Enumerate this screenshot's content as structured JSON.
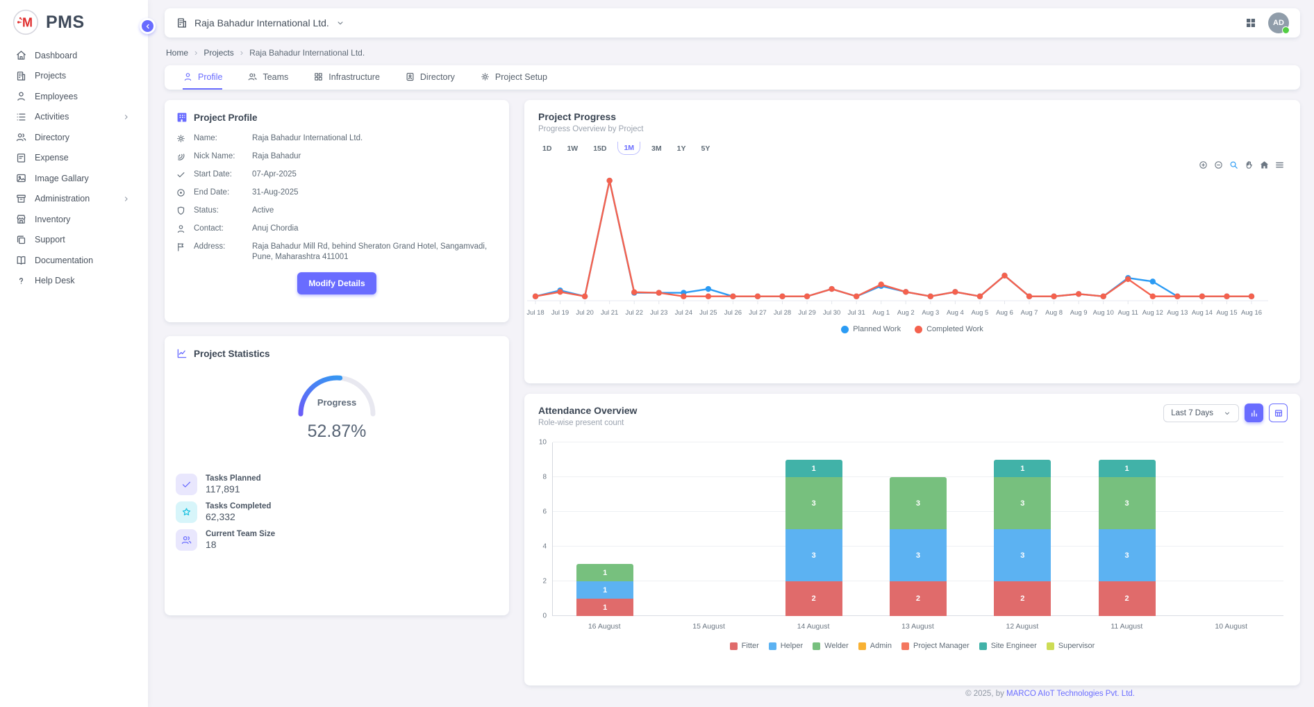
{
  "app": {
    "name": "PMS",
    "logo_letter": "M",
    "logo_color": "#e02b2b"
  },
  "sidebar": {
    "items": [
      {
        "label": "Dashboard",
        "icon": "home",
        "has_submenu": false
      },
      {
        "label": "Projects",
        "icon": "building",
        "has_submenu": false
      },
      {
        "label": "Employees",
        "icon": "user",
        "has_submenu": false
      },
      {
        "label": "Activities",
        "icon": "list",
        "has_submenu": true
      },
      {
        "label": "Directory",
        "icon": "users",
        "has_submenu": false
      },
      {
        "label": "Expense",
        "icon": "receipt",
        "has_submenu": false
      },
      {
        "label": "Image Gallary",
        "icon": "image",
        "has_submenu": false
      },
      {
        "label": "Administration",
        "icon": "archive",
        "has_submenu": true
      },
      {
        "label": "Inventory",
        "icon": "store",
        "has_submenu": false
      },
      {
        "label": "Support",
        "icon": "copies",
        "has_submenu": false
      },
      {
        "label": "Documentation",
        "icon": "book",
        "has_submenu": false
      },
      {
        "label": "Help Desk",
        "icon": "help",
        "has_submenu": false
      }
    ]
  },
  "header": {
    "project_selector": "Raja Bahadur International Ltd.",
    "avatar_initials": "AD"
  },
  "breadcrumb": {
    "separator": "›",
    "items": [
      "Home",
      "Projects",
      "Raja Bahadur International Ltd."
    ]
  },
  "tabs": [
    {
      "label": "Profile",
      "icon": "user",
      "active": true
    },
    {
      "label": "Teams",
      "icon": "users",
      "active": false
    },
    {
      "label": "Infrastructure",
      "icon": "grid4",
      "active": false
    },
    {
      "label": "Directory",
      "icon": "contact",
      "active": false
    },
    {
      "label": "Project Setup",
      "icon": "gear",
      "active": false
    }
  ],
  "profile_card": {
    "title": "Project Profile",
    "fields": [
      {
        "label": "Name:",
        "value": "Raja Bahadur International Ltd.",
        "icon": "gear"
      },
      {
        "label": "Nick Name:",
        "value": "Raja Bahadur",
        "icon": "sig"
      },
      {
        "label": "Start Date:",
        "value": "07-Apr-2025",
        "icon": "check"
      },
      {
        "label": "End Date:",
        "value": "31-Aug-2025",
        "icon": "cdot"
      },
      {
        "label": "Status:",
        "value": "Active",
        "icon": "shield"
      },
      {
        "label": "Contact:",
        "value": "Anuj Chordia",
        "icon": "user"
      },
      {
        "label": "Address:",
        "value": "Raja Bahadur Mill Rd, behind Sheraton Grand Hotel, Sangamvadi, Pune, Maharashtra 411001",
        "icon": "flag"
      }
    ],
    "button_label": "Modify Details"
  },
  "stats_card": {
    "title": "Project Statistics",
    "gauge_label": "Progress",
    "gauge_value": "52.87%",
    "gauge_percent": 52.87,
    "gauge_colors": [
      "#6a5df8",
      "#28a7f0"
    ],
    "stats": [
      {
        "label": "Tasks Planned",
        "value": "117,891",
        "icon": "check",
        "style": "purple"
      },
      {
        "label": "Tasks Completed",
        "value": "62,332",
        "icon": "star",
        "style": "cyan"
      },
      {
        "label": "Current Team Size",
        "value": "18",
        "icon": "users",
        "style": "purple"
      }
    ]
  },
  "progress_card": {
    "title": "Project Progress",
    "subtitle": "Progress Overview by Project",
    "ranges": [
      "1D",
      "1W",
      "15D",
      "1M",
      "3M",
      "1Y",
      "5Y"
    ],
    "active_range": "1M",
    "toolbar": [
      {
        "name": "zoom-in",
        "sym": "zin",
        "active": false
      },
      {
        "name": "zoom-out",
        "sym": "zout",
        "active": false
      },
      {
        "name": "selection-zoom",
        "sym": "mag",
        "active": true
      },
      {
        "name": "pan",
        "sym": "hand",
        "active": false
      },
      {
        "name": "reset-zoom-home",
        "sym": "homef",
        "active": false
      },
      {
        "name": "menu",
        "sym": "menu",
        "active": false
      }
    ]
  },
  "attendance_card": {
    "title": "Attendance Overview",
    "subtitle": "Role-wise present count",
    "range_select": "Last 7 Days",
    "view_toggles": [
      {
        "name": "chart-view",
        "icon": "barchart",
        "active": true
      },
      {
        "name": "table-view",
        "icon": "table",
        "active": false
      }
    ]
  },
  "footer": {
    "copyright": "© 2025, by ",
    "company": "MARCO AIoT Technologies Pvt. Ltd."
  },
  "chart_data": [
    {
      "type": "line",
      "title": "Project Progress",
      "x": [
        "Jul 18",
        "Jul 19",
        "Jul 20",
        "Jul 21",
        "Jul 22",
        "Jul 23",
        "Jul 24",
        "Jul 25",
        "Jul 26",
        "Jul 27",
        "Jul 28",
        "Jul 29",
        "Jul 30",
        "Jul 31",
        "Aug 1",
        "Aug 2",
        "Aug 3",
        "Aug 4",
        "Aug 5",
        "Aug 6",
        "Aug 7",
        "Aug 8",
        "Aug 9",
        "Aug 10",
        "Aug 11",
        "Aug 12",
        "Aug 13",
        "Aug 14",
        "Aug 15",
        "Aug 16"
      ],
      "series": [
        {
          "name": "Planned Work",
          "color": "#2b9bf4",
          "values": [
            1,
            3,
            1,
            40,
            2.2,
            2.2,
            2.2,
            3.5,
            1,
            1,
            1,
            1,
            3.5,
            1,
            4.5,
            2.5,
            1,
            2.5,
            1,
            8,
            1,
            1,
            1.8,
            1,
            7.2,
            6,
            1,
            1,
            1,
            1
          ]
        },
        {
          "name": "Completed Work",
          "color": "#f4614d",
          "values": [
            1,
            2.5,
            1,
            40,
            2.4,
            2.2,
            1,
            1,
            1,
            1,
            1,
            1,
            3.5,
            1,
            5,
            2.5,
            1,
            2.5,
            1,
            8,
            1,
            1,
            1.8,
            1,
            6.8,
            1,
            1,
            1,
            1,
            1
          ]
        }
      ],
      "ylim": [
        0,
        44
      ],
      "grid": false,
      "legend_position": "bottom"
    },
    {
      "type": "bar",
      "stacked": true,
      "title": "Attendance Overview",
      "categories": [
        "16 August",
        "15 August",
        "14 August",
        "13 August",
        "12 August",
        "11 August",
        "10 August"
      ],
      "series": [
        {
          "name": "Fitter",
          "color": "#e06b6b",
          "values": [
            1,
            0,
            2,
            2,
            2,
            2,
            0
          ]
        },
        {
          "name": "Helper",
          "color": "#5cb2f2",
          "values": [
            1,
            0,
            3,
            3,
            3,
            3,
            0
          ]
        },
        {
          "name": "Welder",
          "color": "#77c07e",
          "values": [
            1,
            0,
            3,
            3,
            3,
            3,
            0
          ]
        },
        {
          "name": "Admin",
          "color": "#f8b133",
          "values": [
            0,
            0,
            0,
            0,
            0,
            0,
            0
          ]
        },
        {
          "name": "Project Manager",
          "color": "#f4775f",
          "values": [
            0,
            0,
            0,
            0,
            0,
            0,
            0
          ]
        },
        {
          "name": "Site Engineer",
          "color": "#41b2a8",
          "values": [
            0,
            0,
            1,
            0,
            1,
            1,
            0
          ]
        },
        {
          "name": "Supervisor",
          "color": "#cddc55",
          "values": [
            0,
            0,
            0,
            0,
            0,
            0,
            0
          ]
        }
      ],
      "ylim": [
        0,
        10
      ],
      "yticks": [
        0,
        2,
        4,
        6,
        8,
        10
      ],
      "grid": true,
      "legend_position": "bottom"
    }
  ]
}
